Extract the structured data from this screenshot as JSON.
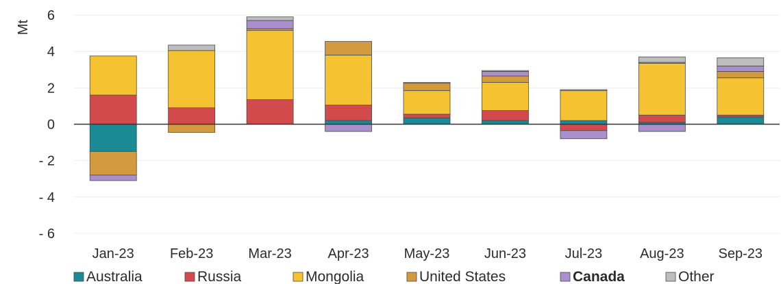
{
  "chart_data": {
    "type": "bar",
    "stacked": true,
    "title": "",
    "xlabel": "",
    "ylabel": "Mt",
    "ylim": [
      -6,
      6
    ],
    "yticks": [
      -6,
      -4,
      -2,
      0,
      2,
      4,
      6
    ],
    "ytick_labels": [
      "- 6",
      "- 4",
      "- 2",
      "0",
      "2",
      "4",
      "6"
    ],
    "grid": true,
    "legend_position": "bottom",
    "categories": [
      "Jan-23",
      "Feb-23",
      "Mar-23",
      "Apr-23",
      "May-23",
      "Jun-23",
      "Jul-23",
      "Aug-23",
      "Sep-23"
    ],
    "series": [
      {
        "name": "Australia",
        "color": "#1a8a94",
        "values": [
          -1.5,
          0.0,
          0.0,
          0.2,
          0.35,
          0.2,
          0.2,
          0.1,
          0.4
        ]
      },
      {
        "name": "Russia",
        "color": "#d24a4c",
        "values": [
          1.6,
          0.9,
          1.35,
          0.85,
          0.2,
          0.55,
          -0.35,
          0.4,
          0.1
        ]
      },
      {
        "name": "Mongolia",
        "color": "#f5c232",
        "values": [
          2.15,
          3.15,
          3.8,
          2.75,
          1.3,
          1.55,
          1.65,
          2.85,
          2.05
        ]
      },
      {
        "name": "United States",
        "color": "#d49a3e",
        "values": [
          -1.3,
          -0.45,
          0.1,
          0.75,
          0.4,
          0.35,
          0.0,
          0.05,
          0.35
        ]
      },
      {
        "name": "Canada",
        "color": "#a98fcc",
        "values": [
          -0.3,
          0.0,
          0.45,
          -0.4,
          0.0,
          0.25,
          -0.45,
          -0.4,
          0.3
        ]
      },
      {
        "name": "Other",
        "color": "#bdbdbd",
        "values": [
          0.0,
          0.3,
          0.2,
          0.0,
          0.05,
          0.05,
          0.05,
          0.3,
          0.45
        ]
      }
    ]
  }
}
